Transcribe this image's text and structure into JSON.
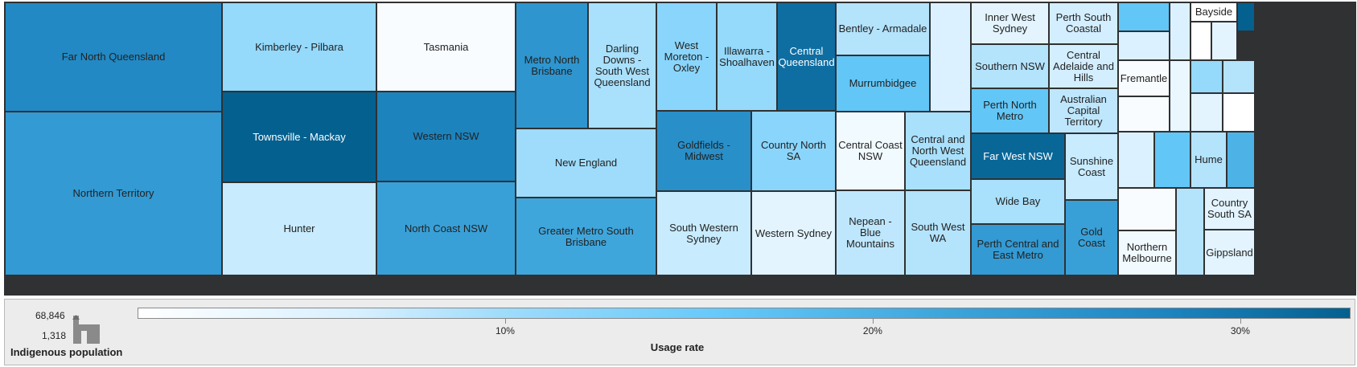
{
  "chart_data": {
    "type": "treemap",
    "title": "",
    "size_measure": "Indigenous population",
    "color_measure": "Usage rate",
    "size_range": {
      "max_label": "68,846",
      "min_label": "1,318"
    },
    "color_axis": {
      "min": 0.0,
      "max": 0.33,
      "ticks": [
        {
          "value": 0.1,
          "label": "10%"
        },
        {
          "value": 0.2,
          "label": "20%"
        },
        {
          "value": 0.3,
          "label": "30%"
        }
      ]
    },
    "regions": [
      {
        "name": "Far North Queensland",
        "usage_rate": 0.27
      },
      {
        "name": "Northern Territory",
        "usage_rate": 0.24
      },
      {
        "name": "Kimberley - Pilbara",
        "usage_rate": 0.12
      },
      {
        "name": "Townsville - Mackay",
        "usage_rate": 0.33
      },
      {
        "name": "Hunter",
        "usage_rate": 0.07
      },
      {
        "name": "Tasmania",
        "usage_rate": 0.01
      },
      {
        "name": "Western NSW",
        "usage_rate": 0.28
      },
      {
        "name": "North Coast NSW",
        "usage_rate": 0.23
      },
      {
        "name": "Metro North Brisbane",
        "usage_rate": 0.25
      },
      {
        "name": "Darling Downs - South West Queensland",
        "usage_rate": 0.1
      },
      {
        "name": "New England",
        "usage_rate": 0.11
      },
      {
        "name": "Greater Metro South Brisbane",
        "usage_rate": 0.22
      },
      {
        "name": "West Moreton - Oxley",
        "usage_rate": 0.13
      },
      {
        "name": "Illawarra - Shoalhaven",
        "usage_rate": 0.12
      },
      {
        "name": "Central Queensland",
        "usage_rate": 0.31
      },
      {
        "name": "Bentley - Armadale",
        "usage_rate": 0.09
      },
      {
        "name": "Murrumbidgee",
        "usage_rate": 0.17
      },
      {
        "name": "Goldfields - Midwest",
        "usage_rate": 0.26
      },
      {
        "name": "Country North SA",
        "usage_rate": 0.13
      },
      {
        "name": "Central Coast NSW",
        "usage_rate": 0.02
      },
      {
        "name": "Central and North West Queensland",
        "usage_rate": 0.1
      },
      {
        "name": "South Western Sydney",
        "usage_rate": 0.07
      },
      {
        "name": "Western Sydney",
        "usage_rate": 0.04
      },
      {
        "name": "Nepean - Blue Mountains",
        "usage_rate": 0.08
      },
      {
        "name": "South West WA",
        "usage_rate": 0.09
      },
      {
        "name": "Inner West Sydney",
        "usage_rate": 0.04
      },
      {
        "name": "Perth South Coastal",
        "usage_rate": 0.06
      },
      {
        "name": "Southern NSW",
        "usage_rate": 0.09
      },
      {
        "name": "Central Adelaide and Hills",
        "usage_rate": 0.06
      },
      {
        "name": "Perth North Metro",
        "usage_rate": 0.17
      },
      {
        "name": "Australian Capital Territory",
        "usage_rate": 0.08
      },
      {
        "name": "Far West NSW",
        "usage_rate": 0.32
      },
      {
        "name": "Sunshine Coast",
        "usage_rate": 0.07
      },
      {
        "name": "Wide Bay",
        "usage_rate": 0.1
      },
      {
        "name": "Perth Central and East Metro",
        "usage_rate": 0.24
      },
      {
        "name": "Gold Coast",
        "usage_rate": 0.23
      },
      {
        "name": "Bayside",
        "usage_rate": 0.0
      },
      {
        "name": "Fremantle",
        "usage_rate": 0.01
      },
      {
        "name": "Hume",
        "usage_rate": 0.09
      },
      {
        "name": "Northern Melbourne",
        "usage_rate": 0.02
      },
      {
        "name": "Country South SA",
        "usage_rate": 0.04
      },
      {
        "name": "Gippsland",
        "usage_rate": 0.04
      },
      {
        "name": "",
        "usage_rate": 0.05
      },
      {
        "name": "",
        "usage_rate": 0.17
      },
      {
        "name": "",
        "usage_rate": 0.05
      },
      {
        "name": "",
        "usage_rate": 0.05
      },
      {
        "name": "",
        "usage_rate": 0.33
      },
      {
        "name": "",
        "usage_rate": 0.0
      },
      {
        "name": "",
        "usage_rate": 0.04
      },
      {
        "name": "",
        "usage_rate": 0.03
      },
      {
        "name": "",
        "usage_rate": 0.12
      },
      {
        "name": "",
        "usage_rate": 0.09
      },
      {
        "name": "",
        "usage_rate": 0.04
      },
      {
        "name": "",
        "usage_rate": 0.0
      },
      {
        "name": "",
        "usage_rate": 0.01
      },
      {
        "name": "",
        "usage_rate": 0.05
      },
      {
        "name": "",
        "usage_rate": 0.17
      },
      {
        "name": "",
        "usage_rate": 0.2
      },
      {
        "name": "",
        "usage_rate": 0.01
      },
      {
        "name": "",
        "usage_rate": 0.09
      }
    ]
  },
  "colors": {
    "scale": [
      "#ffffff",
      "#d8f0ff",
      "#9fdcfb",
      "#66c9fa",
      "#3fa6dc",
      "#1f86c2",
      "#04608f"
    ],
    "border": "#2f3133",
    "legend_bg": "#ececec"
  },
  "legend": {
    "size_title": "Indigenous population",
    "size_max": "68,846",
    "size_min": "1,318",
    "size_icon": "building-size-icon",
    "color_title": "Usage rate"
  }
}
